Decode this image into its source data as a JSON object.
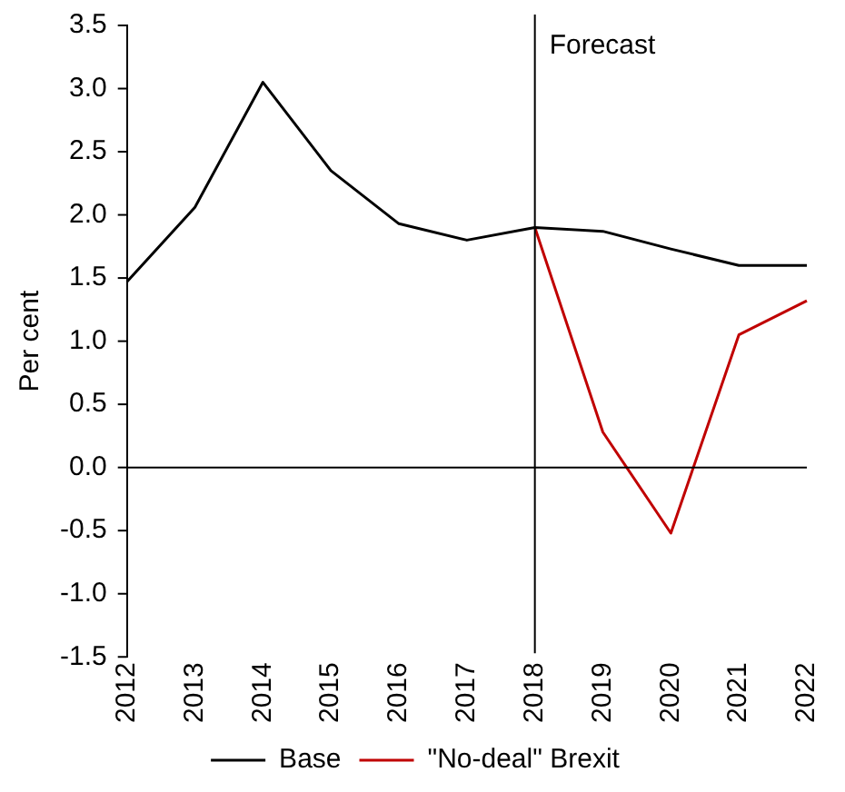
{
  "chart_data": {
    "type": "line",
    "ylabel": "Per cent",
    "categories": [
      "2012",
      "2013",
      "2014",
      "2015",
      "2016",
      "2017",
      "2018",
      "2019",
      "2020",
      "2021",
      "2022"
    ],
    "series": [
      {
        "name": "Base",
        "color": "#000000",
        "values": [
          1.47,
          2.06,
          3.05,
          2.35,
          1.93,
          1.8,
          1.9,
          1.87,
          1.73,
          1.6,
          1.6
        ]
      },
      {
        "name": "\"No-deal\" Brexit",
        "color": "#c00000",
        "values": [
          null,
          null,
          null,
          null,
          null,
          null,
          1.9,
          0.28,
          -0.52,
          1.05,
          1.32
        ]
      }
    ],
    "ylim": [
      -1.5,
      3.5
    ],
    "yticks": [
      {
        "value": -1.5,
        "label": "-1.5"
      },
      {
        "value": -1,
        "label": "-1.0"
      },
      {
        "value": -0.5,
        "label": "-0.5"
      },
      {
        "value": 0,
        "label": "0.0"
      },
      {
        "value": 0.5,
        "label": "0.5"
      },
      {
        "value": 1,
        "label": "1.0"
      },
      {
        "value": 1.5,
        "label": "1.5"
      },
      {
        "value": 2,
        "label": "2.0"
      },
      {
        "value": 2.5,
        "label": "2.5"
      },
      {
        "value": 3,
        "label": "3.0"
      },
      {
        "value": 3.5,
        "label": "3.5"
      }
    ],
    "ref_lines": [
      {
        "axis": "x",
        "value": "2018",
        "label": "Forecast",
        "color": "#000000"
      },
      {
        "axis": "y",
        "value": 0,
        "color": "#000000"
      }
    ],
    "grid": false,
    "legend": "bottom",
    "marker": "none",
    "line_style": "solid"
  }
}
